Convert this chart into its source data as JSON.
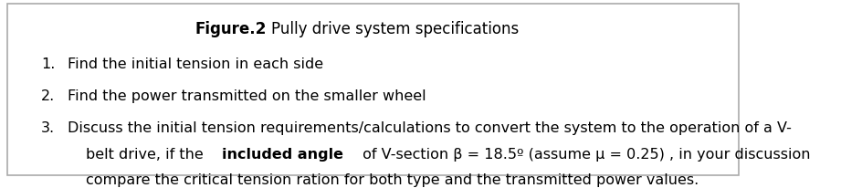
{
  "title_bold": "Figure.2",
  "title_normal": ": Pully drive system specifications",
  "item1": "Find the initial tension in each side",
  "item2": "Find the power transmitted on the smaller wheel",
  "item3_part1": "Discuss the initial tension requirements/calculations to convert the system to the operation of a V-",
  "item3_part2_pre_bold": "belt drive, if the ",
  "item3_part2_bold": "included angle",
  "item3_part2_post": " of V-section β = 18.5º (assume μ = 0.25) , in your discussion",
  "item3_part3": "compare the critical tension ration for both type and the transmitted power values.",
  "bg_color": "#ffffff",
  "border_color": "#aaaaaa",
  "text_color": "#000000",
  "font_size": 11.5,
  "title_font_size": 12
}
